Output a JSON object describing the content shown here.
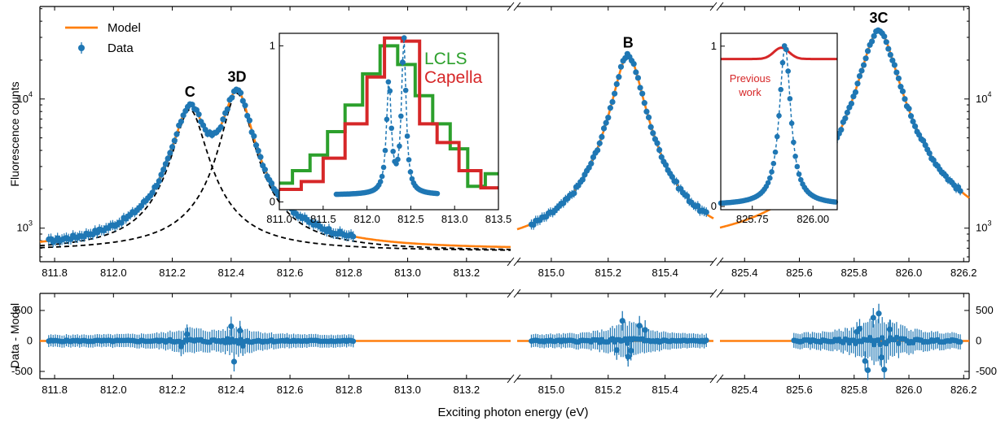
{
  "chart_data": [
    {
      "type": "scatter",
      "panel": "fluorescence spectrum (top, broken x-axis)",
      "ylabel": "Fluorescence counts",
      "yscale": "log",
      "ylim": [
        550,
        52000
      ],
      "y_ticks": [
        "10$3",
        "10$4"
      ],
      "x_segments": [
        {
          "xlim": [
            811.75,
            813.35
          ],
          "ticks": [
            "811.8",
            "812.0",
            "812.2",
            "812.4",
            "812.6",
            "812.8",
            "813.0",
            "813.2"
          ]
        },
        {
          "xlim": [
            814.88,
            815.57
          ],
          "ticks": [
            "815.0",
            "815.2",
            "815.4"
          ]
        },
        {
          "xlim": [
            825.31,
            826.22
          ],
          "ticks": [
            "825.4",
            "825.6",
            "825.8",
            "826.0",
            "826.2"
          ]
        }
      ],
      "legend": {
        "position": "top-left",
        "entries": [
          "Model",
          "Data"
        ]
      },
      "peak_labels": [
        {
          "text": "C",
          "x": 812.26
        },
        {
          "text": "3D",
          "x": 812.42
        },
        {
          "text": "B",
          "x": 815.27
        },
        {
          "text": "3C",
          "x": 825.89
        }
      ],
      "model_peaks": [
        {
          "x0": 812.26,
          "amp": 7600,
          "gamma": 0.05
        },
        {
          "x0": 812.42,
          "amp": 10400,
          "gamma": 0.045
        },
        {
          "x0": 815.27,
          "amp": 21000,
          "gamma": 0.048
        },
        {
          "x0": 825.89,
          "amp": 33000,
          "gamma": 0.06
        }
      ],
      "model_baseline": 660,
      "data_ranges": [
        [
          811.78,
          812.82
        ],
        [
          814.93,
          815.55
        ],
        [
          825.58,
          826.19
        ]
      ],
      "series": [
        {
          "name": "Model",
          "color": "#ff7f0e",
          "kind": "line"
        },
        {
          "name": "Data",
          "color": "#1f77b4",
          "kind": "points with error bars"
        }
      ]
    },
    {
      "type": "scatter",
      "panel": "residuals (bottom)",
      "ylabel": "Data - Model",
      "xlabel": "Exciting photon energy (eV)",
      "ylim": [
        -620,
        780
      ],
      "y_ticks": [
        "500",
        "0",
        "-500"
      ],
      "outliers": [
        {
          "x": 812.4,
          "y": 240
        },
        {
          "x": 812.43,
          "y": 170
        },
        {
          "x": 812.41,
          "y": -340
        },
        {
          "x": 812.25,
          "y": 110
        },
        {
          "x": 812.23,
          "y": -90
        },
        {
          "x": 812.44,
          "y": -80
        },
        {
          "x": 815.25,
          "y": 330
        },
        {
          "x": 815.27,
          "y": -260
        },
        {
          "x": 815.28,
          "y": -160
        },
        {
          "x": 815.31,
          "y": 250
        },
        {
          "x": 815.23,
          "y": -150
        },
        {
          "x": 815.33,
          "y": 180
        },
        {
          "x": 825.85,
          "y": -480
        },
        {
          "x": 825.87,
          "y": 380
        },
        {
          "x": 825.89,
          "y": 450
        },
        {
          "x": 825.91,
          "y": -470
        },
        {
          "x": 825.9,
          "y": -270
        },
        {
          "x": 825.84,
          "y": -330
        },
        {
          "x": 825.82,
          "y": 200
        },
        {
          "x": 825.93,
          "y": 190
        },
        {
          "x": 825.81,
          "y": 150
        }
      ]
    },
    {
      "type": "line",
      "panel": "inset 1 (C / 3D comparison)",
      "xlim": [
        811.0,
        813.5
      ],
      "ylim": [
        -0.05,
        1.08
      ],
      "x_ticks": [
        "811.0",
        "811.5",
        "812.0",
        "812.5",
        "813.0",
        "813.5"
      ],
      "y_ticks": [
        "0",
        "1"
      ],
      "series": [
        {
          "name": "LCLS",
          "color": "#2ca02c",
          "kind": "step",
          "x": [
            811.0,
            811.15,
            811.35,
            811.55,
            811.75,
            811.95,
            812.15,
            812.35,
            812.55,
            812.75,
            812.95,
            813.15,
            813.35,
            813.5
          ],
          "y": [
            0.12,
            0.2,
            0.3,
            0.45,
            0.62,
            0.82,
            1.0,
            0.88,
            0.68,
            0.5,
            0.34,
            0.1,
            0.18,
            0.18
          ]
        },
        {
          "name": "Capella",
          "color": "#d62728",
          "kind": "step",
          "x": [
            811.0,
            811.25,
            811.5,
            811.75,
            812.0,
            812.2,
            812.4,
            812.6,
            812.8,
            813.05,
            813.3,
            813.5
          ],
          "y": [
            0.08,
            0.13,
            0.28,
            0.5,
            0.8,
            1.05,
            1.03,
            0.5,
            0.38,
            0.2,
            0.09,
            0.09
          ]
        },
        {
          "name": "Data",
          "color": "#1f77b4",
          "kind": "points-dashed",
          "peaks": [
            {
              "x0": 812.25,
              "amp": 0.72,
              "gamma": 0.032
            },
            {
              "x0": 812.42,
              "amp": 1.0,
              "gamma": 0.03
            }
          ],
          "xrange": [
            811.65,
            812.82
          ]
        }
      ]
    },
    {
      "type": "line",
      "panel": "inset 2 (3C comparison)",
      "xlim": [
        825.62,
        826.1
      ],
      "ylim": [
        -0.02,
        1.08
      ],
      "x_ticks": [
        "825.75",
        "826.00"
      ],
      "y_ticks": [
        "0",
        "1"
      ],
      "annotation": "Previous work",
      "series": [
        {
          "name": "Previous work",
          "color": "#d62728",
          "kind": "line",
          "base": 0.92,
          "peak_height": 0.07,
          "x0": 825.87
        },
        {
          "name": "Data",
          "color": "#1f77b4",
          "kind": "points-dashed",
          "x0": 825.885,
          "amp": 1.0,
          "gamma": 0.028
        }
      ]
    }
  ],
  "labels": {
    "ylabel_top": "Fluorescence counts",
    "ylabel_bottom": "Data - Model",
    "xlabel": "Exciting photon energy (eV)",
    "legend_model": "Model",
    "legend_data": "Data",
    "inset1_lcls": "LCLS",
    "inset1_capella": "Capella",
    "inset2_prev_line1": "Previous",
    "inset2_prev_line2": "work"
  },
  "colors": {
    "model": "#ff7f0e",
    "data": "#1f77b4",
    "lcls": "#2ca02c",
    "capella": "#d62728",
    "component": "#000000"
  }
}
